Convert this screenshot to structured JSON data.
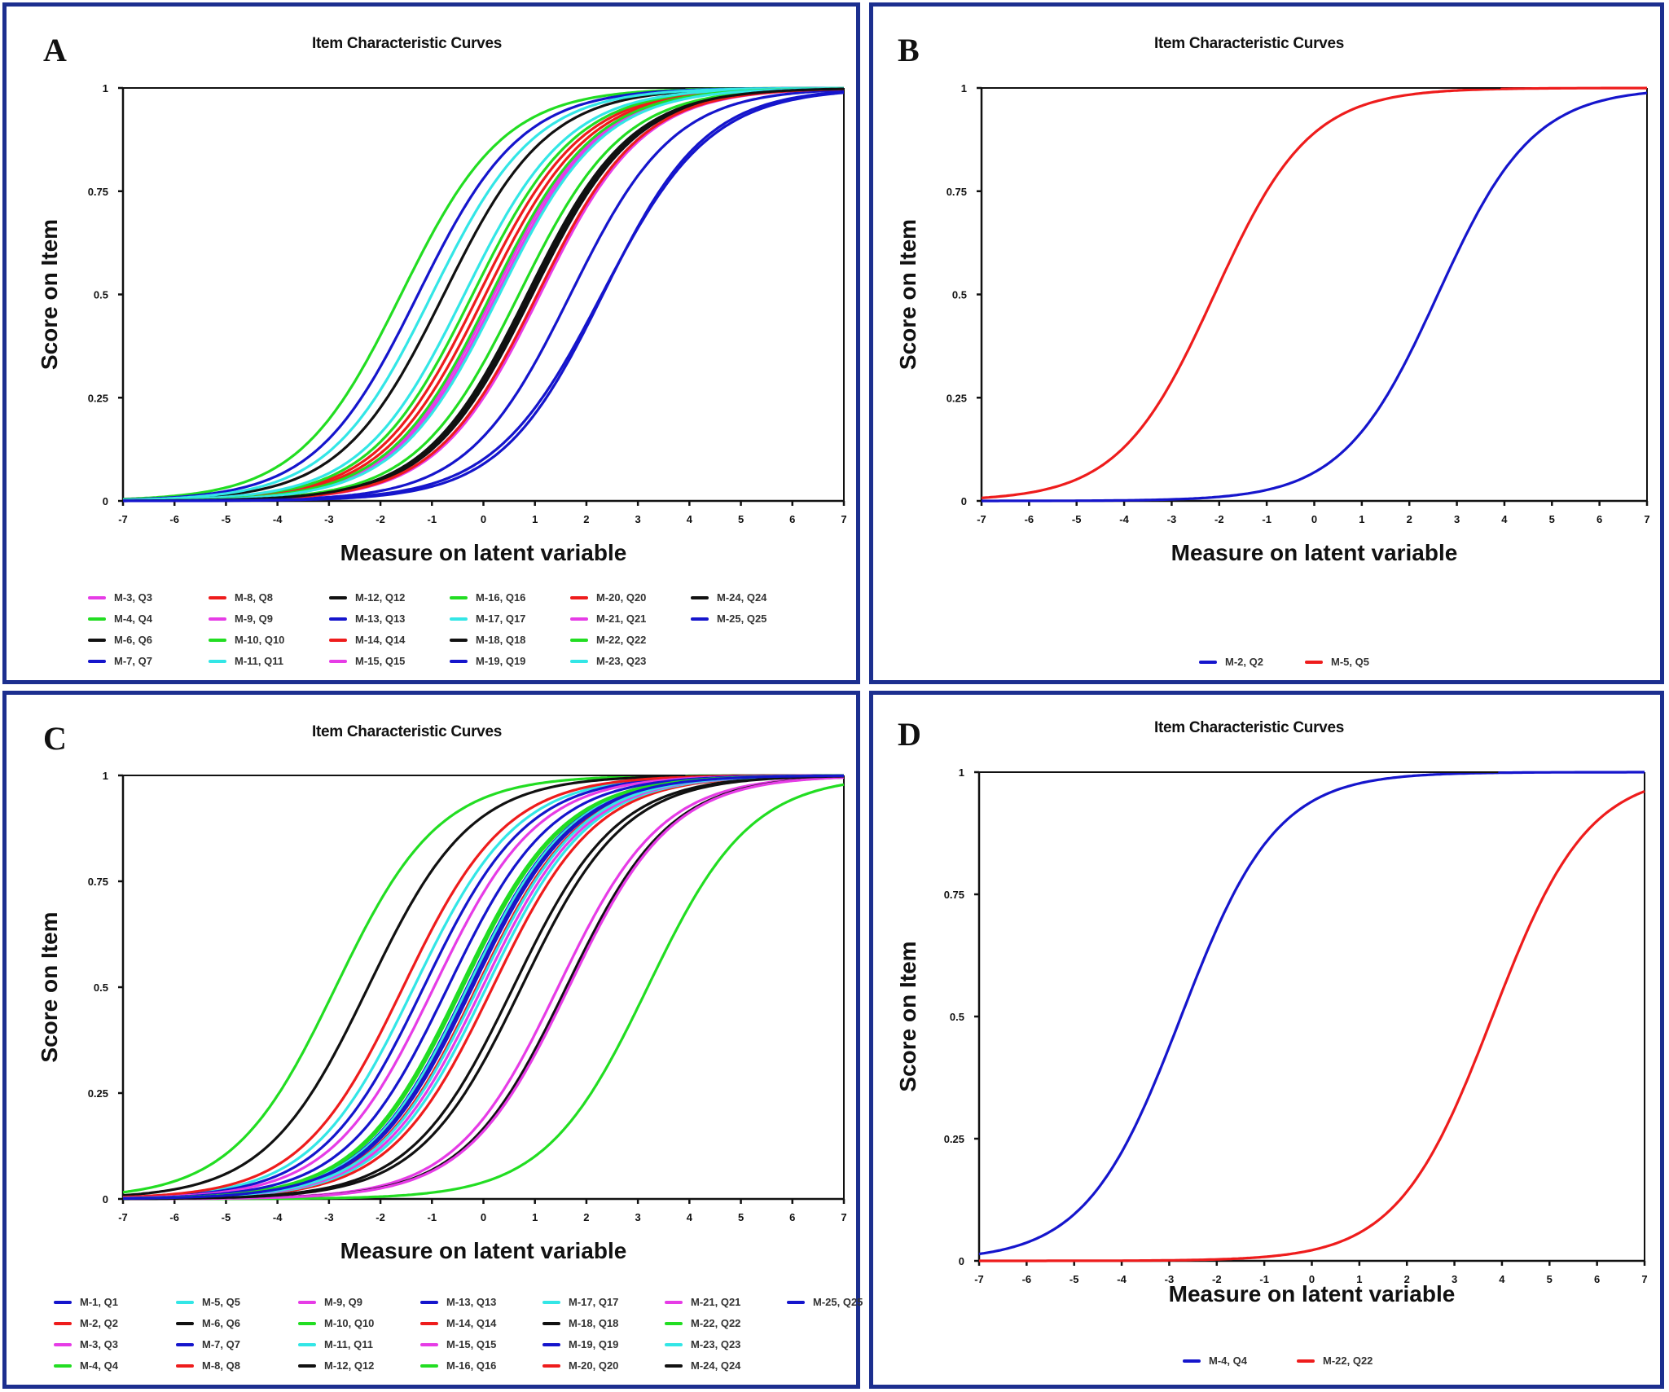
{
  "colors": {
    "border": "#1c2f8f",
    "magenta": "#e63ce6",
    "green": "#22dd22",
    "black": "#111111",
    "blue": "#1515cc",
    "red": "#ee1c1c",
    "cyan": "#33e6e6"
  },
  "chart_data": [
    {
      "panel": "A",
      "type": "line",
      "title": "Item Characteristic Curves",
      "xlabel": "Measure on latent variable",
      "ylabel": "Score on Item",
      "xlim": [
        -7,
        7
      ],
      "ylim": [
        0,
        1
      ],
      "xticks": [
        "-7",
        "-6",
        "-5",
        "-4",
        "-3",
        "-2",
        "-1",
        "0",
        "1",
        "2",
        "3",
        "4",
        "5",
        "6",
        "7"
      ],
      "yticks": [
        "0",
        "0.25",
        "0.5",
        "0.75",
        "1"
      ],
      "legend_position": "bottom",
      "legend_columns": 6,
      "curve_model": "logistic: P = 1/(1+exp(-slope*(x-location)))",
      "series": [
        {
          "name": "M-3, Q3",
          "color": "magenta",
          "location": 0.26,
          "slope": 1.0
        },
        {
          "name": "M-4, Q4",
          "color": "green",
          "location": -1.6,
          "slope": 1.0
        },
        {
          "name": "M-6, Q6",
          "color": "black",
          "location": -0.77,
          "slope": 1.0
        },
        {
          "name": "M-7, Q7",
          "color": "blue",
          "location": -1.27,
          "slope": 1.0
        },
        {
          "name": "M-8, Q8",
          "color": "red",
          "location": -0.09,
          "slope": 1.0
        },
        {
          "name": "M-9, Q9",
          "color": "magenta",
          "location": 1.1,
          "slope": 1.0
        },
        {
          "name": "M-10, Q10",
          "color": "green",
          "location": -0.21,
          "slope": 1.0
        },
        {
          "name": "M-11, Q11",
          "color": "cyan",
          "location": -1.0,
          "slope": 1.0
        },
        {
          "name": "M-12, Q12",
          "color": "black",
          "location": 0.9,
          "slope": 1.0
        },
        {
          "name": "M-13, Q13",
          "color": "blue",
          "location": 1.69,
          "slope": 1.0
        },
        {
          "name": "M-14, Q14",
          "color": "red",
          "location": 0.04,
          "slope": 1.0
        },
        {
          "name": "M-15, Q15",
          "color": "magenta",
          "location": 1.05,
          "slope": 1.0
        },
        {
          "name": "M-16, Q16",
          "color": "green",
          "location": 0.69,
          "slope": 1.0
        },
        {
          "name": "M-17, Q17",
          "color": "cyan",
          "location": -0.37,
          "slope": 1.0
        },
        {
          "name": "M-18, Q18",
          "color": "black",
          "location": 0.95,
          "slope": 1.0
        },
        {
          "name": "M-19, Q19",
          "color": "blue",
          "location": 2.32,
          "slope": 1.0
        },
        {
          "name": "M-20, Q20",
          "color": "red",
          "location": 1.05,
          "slope": 1.0
        },
        {
          "name": "M-21, Q21",
          "color": "magenta",
          "location": 0.2,
          "slope": 1.0
        },
        {
          "name": "M-22, Q22",
          "color": "green",
          "location": 0.15,
          "slope": 1.0
        },
        {
          "name": "M-23, Q23",
          "color": "cyan",
          "location": 0.31,
          "slope": 1.0
        },
        {
          "name": "M-24, Q24",
          "color": "black",
          "location": 0.85,
          "slope": 1.0
        },
        {
          "name": "M-25, Q25",
          "color": "blue",
          "location": 2.3,
          "slope": 0.95
        }
      ]
    },
    {
      "panel": "B",
      "type": "line",
      "title": "Item Characteristic Curves",
      "xlabel": "Measure on latent variable",
      "ylabel": "Score on Item",
      "xlim": [
        -7,
        7
      ],
      "ylim": [
        0,
        1
      ],
      "xticks": [
        "-7",
        "-6",
        "-5",
        "-4",
        "-3",
        "-2",
        "-1",
        "0",
        "1",
        "2",
        "3",
        "4",
        "5",
        "6",
        "7"
      ],
      "yticks": [
        "0",
        "0.25",
        "0.5",
        "0.75",
        "1"
      ],
      "legend_position": "bottom",
      "legend_columns": 2,
      "curve_model": "logistic: P = 1/(1+exp(-slope*(x-location)))",
      "series": [
        {
          "name": "M-2, Q2",
          "color": "blue",
          "location": 2.6,
          "slope": 1.0
        },
        {
          "name": "M-5, Q5",
          "color": "red",
          "location": -2.1,
          "slope": 1.0
        }
      ]
    },
    {
      "panel": "C",
      "type": "line",
      "title": "Item Characteristic Curves",
      "xlabel": "Measure on latent variable",
      "ylabel": "Score on Item",
      "xlim": [
        -7,
        7
      ],
      "ylim": [
        0,
        1
      ],
      "xticks": [
        "-7",
        "-6",
        "-5",
        "-4",
        "-3",
        "-2",
        "-1",
        "0",
        "1",
        "2",
        "3",
        "4",
        "5",
        "6",
        "7"
      ],
      "yticks": [
        "0",
        "0.25",
        "0.5",
        "0.75",
        "1"
      ],
      "legend_position": "bottom",
      "legend_columns": 7,
      "curve_model": "logistic: P = 1/(1+exp(-slope*(x-location)))",
      "series": [
        {
          "name": "M-1, Q1",
          "color": "blue",
          "location": -0.32,
          "slope": 1.0
        },
        {
          "name": "M-2, Q2",
          "color": "red",
          "location": 0.18,
          "slope": 1.0
        },
        {
          "name": "M-3, Q3",
          "color": "magenta",
          "location": 1.45,
          "slope": 1.0
        },
        {
          "name": "M-4, Q4",
          "color": "green",
          "location": -2.87,
          "slope": 1.0
        },
        {
          "name": "M-5, Q5",
          "color": "cyan",
          "location": -1.35,
          "slope": 1.0
        },
        {
          "name": "M-6, Q6",
          "color": "black",
          "location": -2.24,
          "slope": 1.0
        },
        {
          "name": "M-7, Q7",
          "color": "blue",
          "location": -1.16,
          "slope": 1.0
        },
        {
          "name": "M-8, Q8",
          "color": "red",
          "location": -1.56,
          "slope": 1.0
        },
        {
          "name": "M-9, Q9",
          "color": "magenta",
          "location": -0.96,
          "slope": 1.0
        },
        {
          "name": "M-10, Q10",
          "color": "green",
          "location": -0.45,
          "slope": 1.0
        },
        {
          "name": "M-11, Q11",
          "color": "cyan",
          "location": 0.06,
          "slope": 1.0
        },
        {
          "name": "M-12, Q12",
          "color": "black",
          "location": 1.61,
          "slope": 1.0
        },
        {
          "name": "M-13, Q13",
          "color": "blue",
          "location": -0.69,
          "slope": 1.0
        },
        {
          "name": "M-14, Q14",
          "color": "red",
          "location": -0.13,
          "slope": 1.0
        },
        {
          "name": "M-15, Q15",
          "color": "magenta",
          "location": -0.02,
          "slope": 1.0
        },
        {
          "name": "M-16, Q16",
          "color": "green",
          "location": 3.19,
          "slope": 1.0
        },
        {
          "name": "M-17, Q17",
          "color": "cyan",
          "location": -0.3,
          "slope": 1.0
        },
        {
          "name": "M-18, Q18",
          "color": "black",
          "location": 0.58,
          "slope": 1.0
        },
        {
          "name": "M-19, Q19",
          "color": "blue",
          "location": -0.21,
          "slope": 1.0
        },
        {
          "name": "M-20, Q20",
          "color": "red",
          "location": -0.25,
          "slope": 1.0
        },
        {
          "name": "M-21, Q21",
          "color": "magenta",
          "location": 1.66,
          "slope": 1.0
        },
        {
          "name": "M-22, Q22",
          "color": "green",
          "location": -0.4,
          "slope": 1.0
        },
        {
          "name": "M-23, Q23",
          "color": "cyan",
          "location": -0.1,
          "slope": 1.0
        },
        {
          "name": "M-24, Q24",
          "color": "black",
          "location": 0.74,
          "slope": 1.0
        },
        {
          "name": "M-25, Q25",
          "color": "blue",
          "location": -0.25,
          "slope": 1.0
        }
      ]
    },
    {
      "panel": "D",
      "type": "line",
      "title": "Item Characteristic Curves",
      "xlabel": "Measure on latent variable",
      "ylabel": "Score on Item",
      "xlim": [
        -7,
        7
      ],
      "ylim": [
        0,
        1
      ],
      "xticks": [
        "-7",
        "-6",
        "-5",
        "-4",
        "-3",
        "-2",
        "-1",
        "0",
        "1",
        "2",
        "3",
        "4",
        "5",
        "6",
        "7"
      ],
      "yticks": [
        "0",
        "0.25",
        "0.5",
        "0.75",
        "1"
      ],
      "legend_position": "bottom",
      "legend_columns": 2,
      "curve_model": "logistic: P = 1/(1+exp(-slope*(x-location)))",
      "series": [
        {
          "name": "M-4, Q4",
          "color": "blue",
          "location": -2.75,
          "slope": 1.0
        },
        {
          "name": "M-22, Q22",
          "color": "red",
          "location": 3.8,
          "slope": 1.0
        }
      ]
    }
  ],
  "panels": {
    "a": {
      "letter": "A",
      "title": "Item Characteristic Curves"
    },
    "b": {
      "letter": "B",
      "title": "Item Characteristic Curves"
    },
    "c": {
      "letter": "C",
      "title": "Item Characteristic Curves"
    },
    "d": {
      "letter": "D",
      "title": "Item Characteristic Curves"
    }
  }
}
